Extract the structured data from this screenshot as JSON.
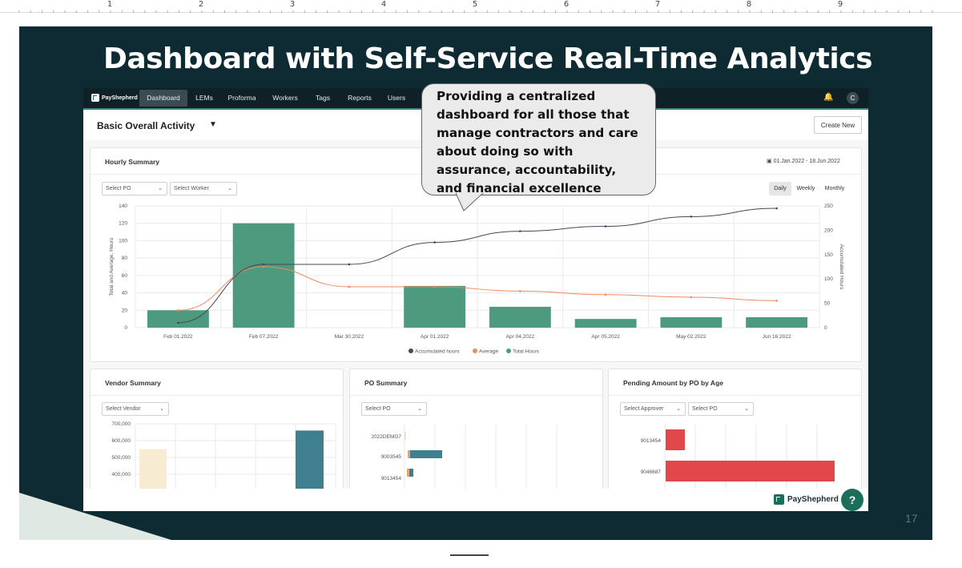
{
  "ruler": {
    "numbers": [
      "1",
      "2",
      "3",
      "4",
      "5",
      "6",
      "7",
      "8",
      "9"
    ]
  },
  "slide": {
    "title": "Dashboard with Self-Service Real-Time Analytics",
    "page_number": "17",
    "callout": "Providing a centralized dashboard for all those that manage contractors and care about doing so with assurance, accountability, and financial excellence"
  },
  "nav": {
    "brand": "PayShepherd",
    "items": [
      "Dashboard",
      "LEMs",
      "Proforma",
      "Workers",
      "Tags",
      "Reports",
      "Users"
    ],
    "active": "Dashboard",
    "avatar": "C"
  },
  "toolbar": {
    "view_title": "Basic Overall Activity",
    "create_label": "Create New"
  },
  "hourly": {
    "title": "Hourly Summary",
    "date_range": "01.Jan.2022 - 18.Jun.2022",
    "select_po": "Select PO",
    "select_worker": "Select Worker",
    "periods": [
      "Daily",
      "Weekly",
      "Monthly"
    ],
    "active_period": "Daily"
  },
  "vendor": {
    "title": "Vendor Summary",
    "select": "Select Vendor"
  },
  "po": {
    "title": "PO Summary",
    "select": "Select PO"
  },
  "pending": {
    "title": "Pending Amount by PO by Age",
    "select_approver": "Select Approver",
    "select_po": "Select PO"
  },
  "footer": {
    "brand": "PayShepherd",
    "help": "?"
  },
  "colors": {
    "navy": "#0e2b33",
    "green": "#4e9a7e",
    "bar_teal": "#3f7f90",
    "bar_cream": "#f7ecd1",
    "bar_red": "#e0484b",
    "avg_line": "#f08a5d",
    "acc_line": "#3e4a5b"
  },
  "chart_data": [
    {
      "type": "bar",
      "name": "hourly-summary",
      "categories": [
        "Feb 01.2022",
        "Feb 07.2022",
        "Mar 30.2022",
        "Apr 01.2022",
        "Apr 04.2022",
        "Apr 05.2022",
        "May 02.2022",
        "Jun 16.2022"
      ],
      "series": [
        {
          "name": "Accumulated hours",
          "type": "line",
          "axis": "right",
          "values": [
            10,
            130,
            130,
            175,
            198,
            208,
            228,
            245
          ]
        },
        {
          "name": "Average",
          "type": "line",
          "axis": "left",
          "values": [
            20,
            70,
            47,
            47,
            42,
            38,
            35,
            31
          ]
        },
        {
          "name": "Total Hours",
          "type": "bar",
          "axis": "left",
          "values": [
            20,
            120,
            0,
            48,
            24,
            10,
            12,
            12
          ]
        }
      ],
      "ylabel": "Total and Average, Hours",
      "y2label": "Accumulated Hours",
      "yticks": [
        0,
        20,
        40,
        60,
        80,
        100,
        120,
        140
      ],
      "y2ticks": [
        0,
        50,
        100,
        150,
        200,
        250
      ],
      "ylim": [
        0,
        140
      ],
      "y2lim": [
        0,
        250
      ],
      "legend": "bottom",
      "grid": true
    },
    {
      "type": "bar",
      "name": "vendor-summary",
      "yticks": [
        "700,000",
        "600,000",
        "500,000",
        "400,000"
      ],
      "ylim": [
        350000,
        700000
      ],
      "values": [
        550000,
        660000
      ]
    },
    {
      "type": "bar",
      "name": "po-summary",
      "orientation": "horizontal",
      "categories": [
        "2022DEMO7",
        "9003545",
        "9013454"
      ]
    },
    {
      "type": "bar",
      "name": "pending-amount",
      "orientation": "horizontal",
      "categories": [
        "9013454",
        "9046687"
      ]
    }
  ]
}
